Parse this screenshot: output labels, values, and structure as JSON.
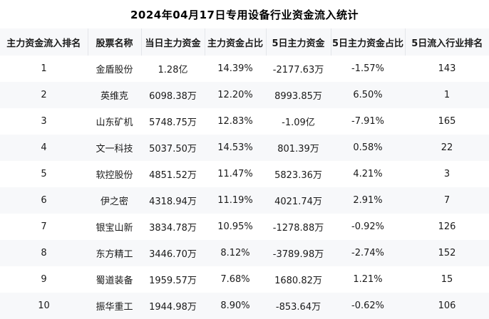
{
  "title": "2024年04月17日专用设备行业资金流入统计",
  "colors": {
    "header_bg": "#f7f8fa",
    "row_even_bg": "#f7f8fa",
    "row_odd_bg": "#ffffff",
    "header_divider": "#e4e6ea",
    "text": "#1a1a1a"
  },
  "table": {
    "columns": [
      "主力资金流入排名",
      "股票名称",
      "当日主力资金",
      "主力资金占比",
      "5日主力资金",
      "5日主力资金占比",
      "5日流入行业排名"
    ],
    "rows": [
      [
        "1",
        "金盾股份",
        "1.28亿",
        "14.39%",
        "-2177.63万",
        "-1.57%",
        "143"
      ],
      [
        "2",
        "英维克",
        "6098.38万",
        "12.20%",
        "8993.85万",
        "6.50%",
        "1"
      ],
      [
        "3",
        "山东矿机",
        "5748.75万",
        "12.83%",
        "-1.09亿",
        "-7.91%",
        "165"
      ],
      [
        "4",
        "文一科技",
        "5037.50万",
        "14.53%",
        "801.39万",
        "0.58%",
        "22"
      ],
      [
        "5",
        "软控股份",
        "4851.52万",
        "11.47%",
        "5823.36万",
        "4.21%",
        "3"
      ],
      [
        "6",
        "伊之密",
        "4318.94万",
        "11.19%",
        "4021.74万",
        "2.91%",
        "7"
      ],
      [
        "7",
        "银宝山新",
        "3834.78万",
        "10.95%",
        "-1278.88万",
        "-0.92%",
        "126"
      ],
      [
        "8",
        "东方精工",
        "3446.70万",
        "8.12%",
        "-3789.98万",
        "-2.74%",
        "152"
      ],
      [
        "9",
        "蜀道装备",
        "1959.57万",
        "7.68%",
        "1680.82万",
        "1.21%",
        "15"
      ],
      [
        "10",
        "振华重工",
        "1944.98万",
        "8.90%",
        "-853.64万",
        "-0.62%",
        "106"
      ]
    ]
  },
  "chart_data": {
    "type": "table",
    "title": "2024年04月17日专用设备行业资金流入统计",
    "columns": [
      "主力资金流入排名",
      "股票名称",
      "当日主力资金",
      "主力资金占比",
      "5日主力资金",
      "5日主力资金占比",
      "5日流入行业排名"
    ],
    "rows": [
      [
        "1",
        "金盾股份",
        "1.28亿",
        "14.39%",
        "-2177.63万",
        "-1.57%",
        "143"
      ],
      [
        "2",
        "英维克",
        "6098.38万",
        "12.20%",
        "8993.85万",
        "6.50%",
        "1"
      ],
      [
        "3",
        "山东矿机",
        "5748.75万",
        "12.83%",
        "-1.09亿",
        "-7.91%",
        "165"
      ],
      [
        "4",
        "文一科技",
        "5037.50万",
        "14.53%",
        "801.39万",
        "0.58%",
        "22"
      ],
      [
        "5",
        "软控股份",
        "4851.52万",
        "11.47%",
        "5823.36万",
        "4.21%",
        "3"
      ],
      [
        "6",
        "伊之密",
        "4318.94万",
        "11.19%",
        "4021.74万",
        "2.91%",
        "7"
      ],
      [
        "7",
        "银宝山新",
        "3834.78万",
        "10.95%",
        "-1278.88万",
        "-0.92%",
        "126"
      ],
      [
        "8",
        "东方精工",
        "3446.70万",
        "8.12%",
        "-3789.98万",
        "-2.74%",
        "152"
      ],
      [
        "9",
        "蜀道装备",
        "1959.57万",
        "7.68%",
        "1680.82万",
        "1.21%",
        "15"
      ],
      [
        "10",
        "振华重工",
        "1944.98万",
        "8.90%",
        "-853.64万",
        "-0.62%",
        "106"
      ]
    ]
  }
}
